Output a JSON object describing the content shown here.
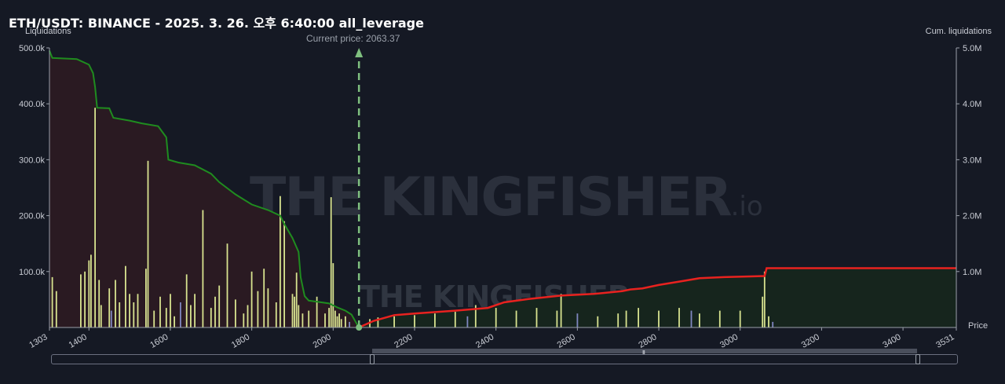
{
  "title": "ETH/USDT: BINANCE - 2025. 3. 26. 오후 6:40:00 all_leverage",
  "watermark": {
    "brand": "THE KINGFISHER",
    "tld": ".io"
  },
  "colors": {
    "background": "#151924",
    "short_cum_line": "#1f8c1f",
    "short_fill": "#2a1a22",
    "long_cum_line": "#e8221f",
    "long_fill": "#16251d",
    "liq_bar": "#d8e38f",
    "liq_bar_alt": "#7f86c0",
    "current_price_line": "#7fbf7f"
  },
  "chart_data": {
    "type": "bar",
    "title": "ETH/USDT: BINANCE - 2025. 3. 26. 오후 6:40:00 all_leverage",
    "xlabel": "Price",
    "ylabel": "Liquidations",
    "y2label": "Cum. liquidations",
    "xlim": [
      1303,
      3531
    ],
    "ylim": [
      0,
      500000
    ],
    "y2lim": [
      0,
      5000000
    ],
    "x_ticks": [
      "1303",
      "1400",
      "1600",
      "1800",
      "2000",
      "2200",
      "2400",
      "2600",
      "2800",
      "3000",
      "3200",
      "3400",
      "3531"
    ],
    "y_ticks": [
      "100.0k",
      "200.0k",
      "300.0k",
      "400.0k",
      "500.0k"
    ],
    "y2_ticks": [
      "1.0M",
      "2.0M",
      "3.0M",
      "4.0M",
      "5.0M"
    ],
    "current_price": 2063.37,
    "current_price_label": "Current price: 2063.37",
    "series": [
      {
        "kind": "cumulative_short",
        "points": [
          [
            1303,
            4950000
          ],
          [
            1310,
            4820000
          ],
          [
            1370,
            4800000
          ],
          [
            1400,
            4700000
          ],
          [
            1410,
            4550000
          ],
          [
            1415,
            4300000
          ],
          [
            1420,
            3930000
          ],
          [
            1450,
            3920000
          ],
          [
            1460,
            3750000
          ],
          [
            1500,
            3700000
          ],
          [
            1530,
            3650000
          ],
          [
            1570,
            3600000
          ],
          [
            1590,
            3400000
          ],
          [
            1595,
            3000000
          ],
          [
            1620,
            2950000
          ],
          [
            1660,
            2900000
          ],
          [
            1700,
            2750000
          ],
          [
            1720,
            2600000
          ],
          [
            1760,
            2380000
          ],
          [
            1800,
            2200000
          ],
          [
            1840,
            2100000
          ],
          [
            1870,
            2000000
          ],
          [
            1880,
            1850000
          ],
          [
            1900,
            1600000
          ],
          [
            1915,
            1350000
          ],
          [
            1920,
            900000
          ],
          [
            1930,
            560000
          ],
          [
            1940,
            480000
          ],
          [
            1990,
            430000
          ],
          [
            2010,
            360000
          ],
          [
            2030,
            300000
          ],
          [
            2045,
            230000
          ],
          [
            2063,
            0
          ]
        ]
      },
      {
        "kind": "cumulative_long",
        "points": [
          [
            2063,
            0
          ],
          [
            2100,
            120000
          ],
          [
            2150,
            220000
          ],
          [
            2200,
            250000
          ],
          [
            2300,
            300000
          ],
          [
            2380,
            350000
          ],
          [
            2420,
            450000
          ],
          [
            2480,
            510000
          ],
          [
            2560,
            570000
          ],
          [
            2640,
            600000
          ],
          [
            2710,
            650000
          ],
          [
            2730,
            680000
          ],
          [
            2760,
            700000
          ],
          [
            2800,
            760000
          ],
          [
            2850,
            820000
          ],
          [
            2900,
            880000
          ],
          [
            2960,
            900000
          ],
          [
            3060,
            920000
          ],
          [
            3065,
            1060000
          ],
          [
            3531,
            1060000
          ]
        ]
      },
      {
        "kind": "liquidations",
        "x": [
          1310,
          1320,
          1380,
          1390,
          1400,
          1405,
          1415,
          1425,
          1430,
          1450,
          1455,
          1465,
          1475,
          1490,
          1500,
          1510,
          1520,
          1540,
          1545,
          1560,
          1575,
          1590,
          1600,
          1610,
          1625,
          1640,
          1650,
          1660,
          1680,
          1700,
          1710,
          1720,
          1740,
          1760,
          1780,
          1790,
          1800,
          1815,
          1830,
          1840,
          1860,
          1870,
          1880,
          1900,
          1905,
          1910,
          1915,
          1925,
          1940,
          1960,
          1980,
          1990,
          1995,
          2000,
          2005,
          2010,
          2015,
          2020,
          2030,
          2040,
          2090,
          2110,
          2150,
          2200,
          2250,
          2300,
          2330,
          2350,
          2400,
          2450,
          2500,
          2550,
          2560,
          2600,
          2650,
          2700,
          2720,
          2750,
          2800,
          2850,
          2880,
          2900,
          2950,
          3000,
          3055,
          3060,
          3070,
          3080
        ],
        "values": [
          90000,
          65000,
          95000,
          100000,
          120000,
          130000,
          393000,
          85000,
          40000,
          70000,
          30000,
          85000,
          45000,
          110000,
          60000,
          45000,
          60000,
          105000,
          298000,
          30000,
          55000,
          35000,
          60000,
          20000,
          45000,
          95000,
          40000,
          60000,
          210000,
          35000,
          55000,
          75000,
          150000,
          50000,
          25000,
          40000,
          100000,
          65000,
          105000,
          70000,
          45000,
          235000,
          190000,
          60000,
          55000,
          98000,
          40000,
          25000,
          30000,
          55000,
          25000,
          35000,
          233000,
          115000,
          30000,
          20000,
          25000,
          15000,
          20000,
          10000,
          15000,
          18000,
          20000,
          22000,
          25000,
          28000,
          20000,
          40000,
          35000,
          30000,
          35000,
          30000,
          60000,
          25000,
          20000,
          25000,
          30000,
          35000,
          30000,
          35000,
          30000,
          25000,
          30000,
          30000,
          55000,
          100000,
          20000,
          10000
        ]
      }
    ]
  },
  "navigator": {
    "grip_glyph": "III"
  }
}
